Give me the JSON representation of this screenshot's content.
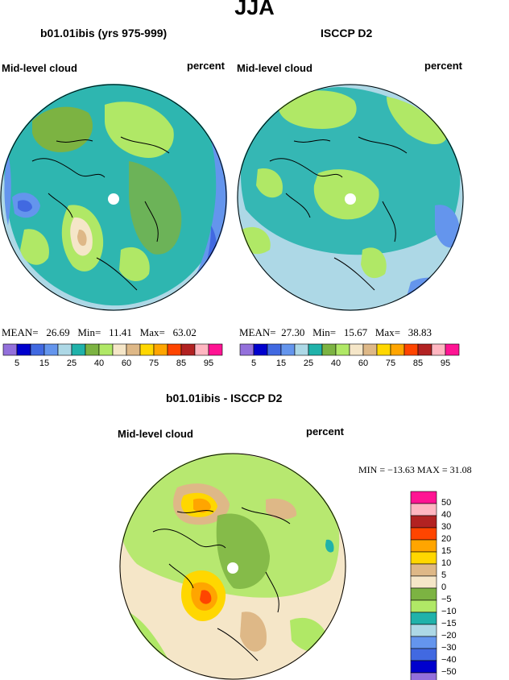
{
  "title": "JJA",
  "panels": [
    {
      "title": "b01.01ibis (yrs 975-999)",
      "left_label": "Mid-level cloud",
      "right_label": "percent",
      "stats": {
        "mean_label": "MEAN=",
        "mean": "26.69",
        "min_label": "Min=",
        "min": "11.41",
        "max_label": "Max=",
        "max": "63.02"
      }
    },
    {
      "title": "ISCCP D2",
      "left_label": "Mid-level cloud",
      "right_label": "percent",
      "stats": {
        "mean_label": "MEAN=",
        "mean": "27.30",
        "min_label": "Min=",
        "min": "15.67",
        "max_label": "Max=",
        "max": "38.83"
      }
    },
    {
      "title": "b01.01ibis - ISCCP D2",
      "left_label": "Mid-level cloud",
      "right_label": "percent",
      "stats_line": "MIN = −13.63  MAX =   31.08"
    }
  ],
  "top_colorbar": {
    "colors": [
      "#9370db",
      "#0000cd",
      "#4169e1",
      "#6495ed",
      "#add8e6",
      "#20b2aa",
      "#7cb342",
      "#b0e866",
      "#f5e6c8",
      "#deb887",
      "#ffd700",
      "#ffa500",
      "#ff4500",
      "#b22222",
      "#ffb6c1",
      "#ff1493"
    ],
    "tick_labels": [
      "5",
      "15",
      "25",
      "40",
      "60",
      "75",
      "85",
      "95"
    ]
  },
  "diff_colorbar": {
    "colors": [
      "#ff1493",
      "#ffb6c1",
      "#b22222",
      "#ff4500",
      "#ffa500",
      "#ffd700",
      "#deb887",
      "#f5e6c8",
      "#7cb342",
      "#b0e866",
      "#20b2aa",
      "#add8e6",
      "#6495ed",
      "#4169e1",
      "#0000cd",
      "#9370db"
    ],
    "tick_labels": [
      "50",
      "40",
      "30",
      "20",
      "15",
      "10",
      "5",
      "0",
      "−5",
      "−10",
      "−15",
      "−20",
      "−30",
      "−40",
      "−50"
    ]
  }
}
